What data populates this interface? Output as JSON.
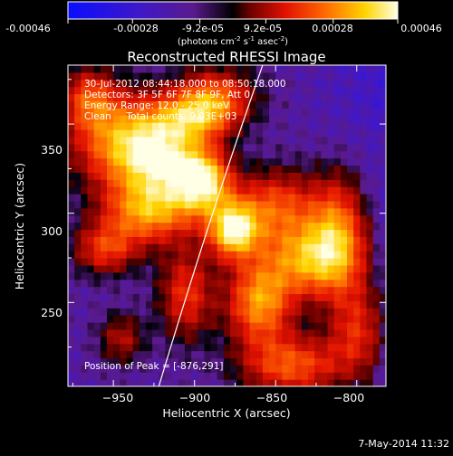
{
  "colorbar": {
    "ticks": [
      "-0.00046",
      "-0.00028",
      "-9.2e-05",
      "9.2e-05",
      "0.00028",
      "0.00046"
    ],
    "min": -0.00046,
    "max": 0.00046,
    "unit_main": "(photons cm",
    "unit_exp1": "-2",
    "unit_mid": " s",
    "unit_exp2": "-1",
    "unit_end": " asec",
    "unit_exp3": "-2",
    "unit_close": ")"
  },
  "chart_data": {
    "type": "heatmap",
    "title": "Reconstructed RHESSI Image",
    "xlabel": "Heliocentric X (arcsec)",
    "ylabel": "Heliocentric Y (arcsec)",
    "xlim": [
      -978,
      -782
    ],
    "ylim": [
      203,
      383
    ],
    "xticks": [
      -950,
      -900,
      -850,
      -800
    ],
    "xtick_labels": [
      "−950",
      "−900",
      "−850",
      "−800"
    ],
    "yticks": [
      250,
      300,
      350
    ],
    "ytick_labels": [
      "250",
      "300",
      "350"
    ],
    "annotations": [
      "30-Jul-2012 08:44:18.000 to 08:50:18.000",
      "Detectors: 3F 5F 6F 7F 8F 9F, Att 0",
      "Energy Range: 12.0 - 25.0 keV",
      "Clean     Total counts: 9.03E+03"
    ],
    "peak_label": "Position of Peak = [-876,291]",
    "peak": [
      -876,
      291
    ],
    "limb_line": [
      [
        -922,
        203
      ],
      [
        -890,
        300
      ],
      [
        -858,
        383
      ]
    ],
    "colormap": "blue-purple-red-yellow-white",
    "emission_blobs": [
      {
        "x": -945,
        "y": 340,
        "sx": 22,
        "sy": 18,
        "a": 0.7
      },
      {
        "x": -920,
        "y": 330,
        "sx": 18,
        "sy": 20,
        "a": 0.75
      },
      {
        "x": -895,
        "y": 318,
        "sx": 12,
        "sy": 12,
        "a": 0.95
      },
      {
        "x": -900,
        "y": 355,
        "sx": 15,
        "sy": 10,
        "a": 0.55
      },
      {
        "x": -876,
        "y": 291,
        "sx": 11,
        "sy": 11,
        "a": 1.0
      },
      {
        "x": -930,
        "y": 300,
        "sx": 20,
        "sy": 12,
        "a": 0.6
      },
      {
        "x": -850,
        "y": 305,
        "sx": 18,
        "sy": 14,
        "a": 0.55
      },
      {
        "x": -830,
        "y": 275,
        "sx": 20,
        "sy": 15,
        "a": 0.75
      },
      {
        "x": -812,
        "y": 290,
        "sx": 12,
        "sy": 22,
        "a": 0.6
      },
      {
        "x": -860,
        "y": 250,
        "sx": 14,
        "sy": 16,
        "a": 0.75
      },
      {
        "x": -840,
        "y": 215,
        "sx": 22,
        "sy": 12,
        "a": 0.6
      },
      {
        "x": -905,
        "y": 255,
        "sx": 12,
        "sy": 18,
        "a": 0.5
      },
      {
        "x": -955,
        "y": 280,
        "sx": 14,
        "sy": 10,
        "a": 0.5
      },
      {
        "x": -885,
        "y": 365,
        "sx": 16,
        "sy": 12,
        "a": 0.55
      },
      {
        "x": -945,
        "y": 230,
        "sx": 10,
        "sy": 10,
        "a": 0.35
      },
      {
        "x": -800,
        "y": 235,
        "sx": 12,
        "sy": 18,
        "a": 0.45
      },
      {
        "x": -965,
        "y": 365,
        "sx": 12,
        "sy": 12,
        "a": 0.5
      }
    ]
  },
  "footer": {
    "timestamp": "7-May-2014 11:32"
  }
}
